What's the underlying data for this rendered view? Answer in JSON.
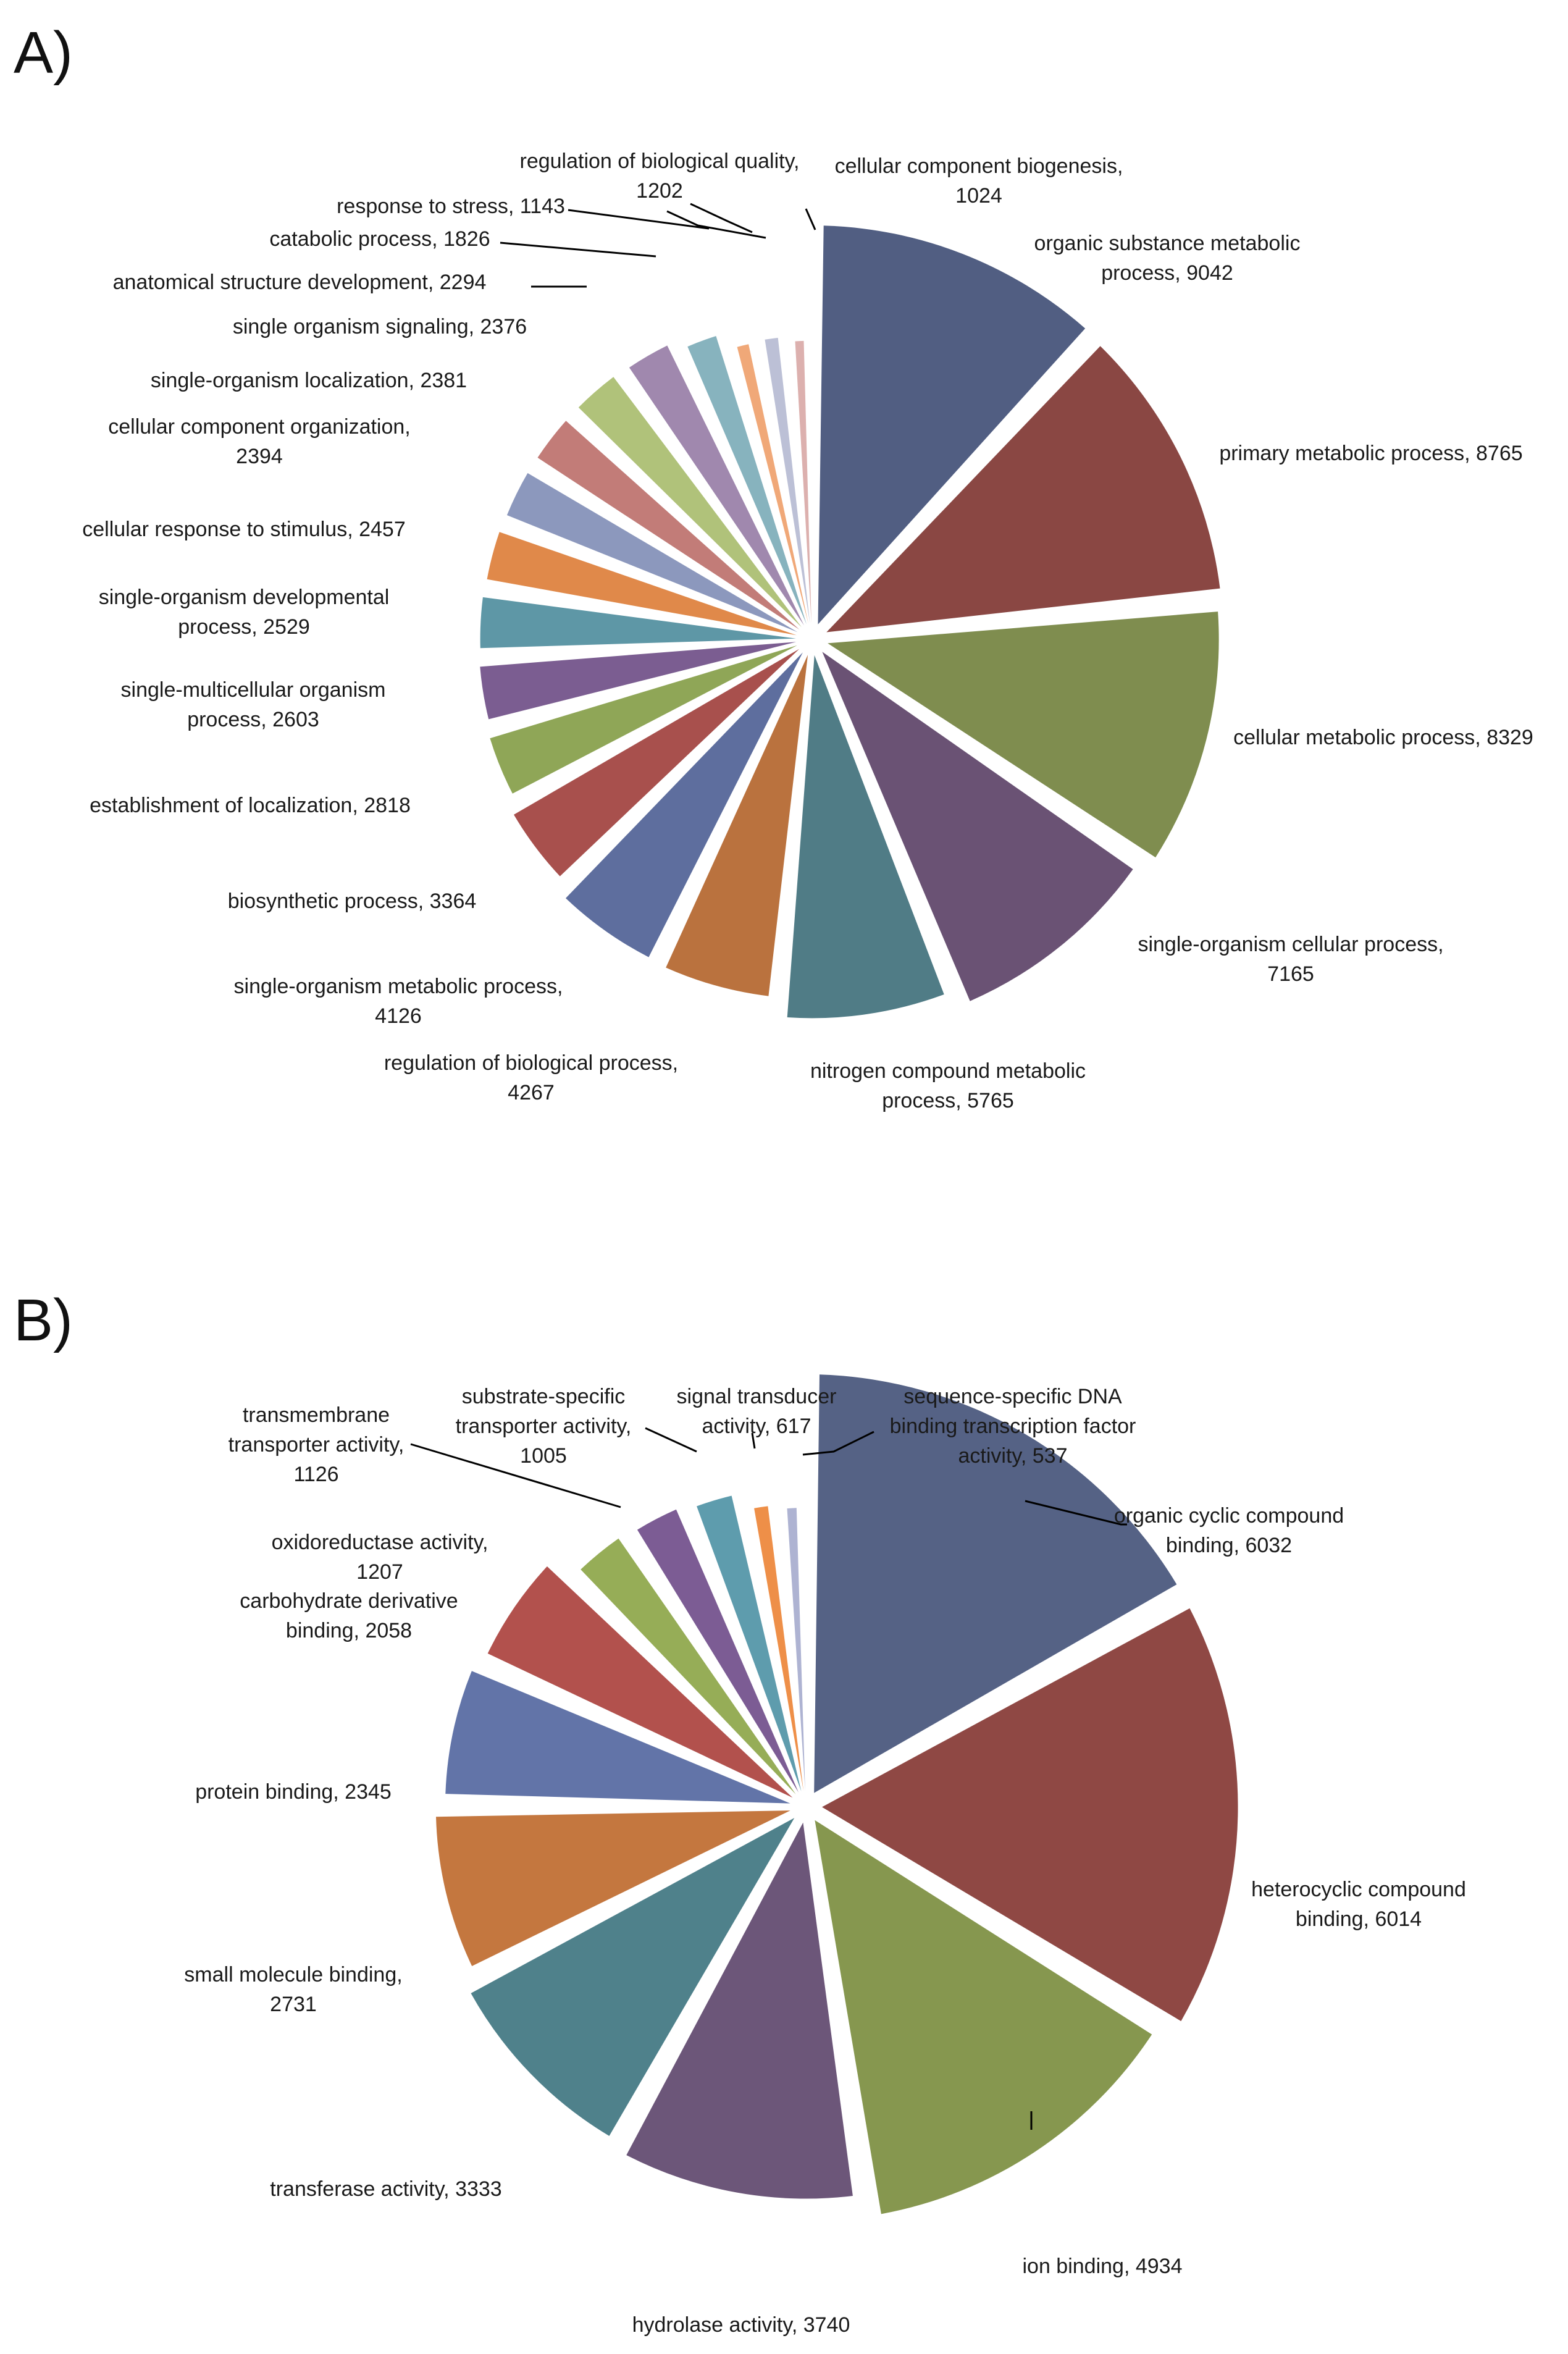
{
  "chart_data": [
    {
      "panel": "A)",
      "type": "pie",
      "title": "",
      "slices": [
        {
          "label": "organic substance metabolic process, 9042",
          "value": 9042,
          "color": "#515E82"
        },
        {
          "label": "primary metabolic process, 8765",
          "value": 8765,
          "color": "#8A4743"
        },
        {
          "label": "cellular metabolic process, 8329",
          "value": 8329,
          "color": "#7F8D4F"
        },
        {
          "label": "single-organism cellular process, 7165",
          "value": 7165,
          "color": "#6A5274"
        },
        {
          "label": "nitrogen compound metabolic process, 5765",
          "value": 5765,
          "color": "#507C86"
        },
        {
          "label": "regulation of biological process, 4267",
          "value": 4267,
          "color": "#BA723E"
        },
        {
          "label": "single-organism metabolic process, 4126",
          "value": 4126,
          "color": "#5E6E9E"
        },
        {
          "label": "biosynthetic process, 3364",
          "value": 3364,
          "color": "#A8504D"
        },
        {
          "label": "establishment of localization, 2818",
          "value": 2818,
          "color": "#8FA657"
        },
        {
          "label": "single-multicellular organism process, 2603",
          "value": 2603,
          "color": "#7B5D91"
        },
        {
          "label": "single-organism developmental process, 2529",
          "value": 2529,
          "color": "#5E97A6"
        },
        {
          "label": "cellular response to stimulus, 2457",
          "value": 2457,
          "color": "#E0894A"
        },
        {
          "label": "cellular component organization, 2394",
          "value": 2394,
          "color": "#8C98BD"
        },
        {
          "label": "single-organism localization, 2381",
          "value": 2381,
          "color": "#C27C78"
        },
        {
          "label": "single organism signaling, 2376",
          "value": 2376,
          "color": "#B0C27A"
        },
        {
          "label": "anatomical structure development, 2294",
          "value": 2294,
          "color": "#A088AE"
        },
        {
          "label": "catabolic process, 1826",
          "value": 1826,
          "color": "#87B3BE"
        },
        {
          "label": "response to stress, 1143",
          "value": 1143,
          "color": "#F0A878"
        },
        {
          "label": "regulation of biological quality, 1202",
          "value": 1202,
          "color": "#BCC0D6"
        },
        {
          "label": "cellular component biogenesis, 1024",
          "value": 1024,
          "color": "#DCB0AE"
        }
      ]
    },
    {
      "panel": "B)",
      "type": "pie",
      "title": "",
      "slices": [
        {
          "label": "organic cyclic compound binding, 6032",
          "value": 6032,
          "color": "#556285"
        },
        {
          "label": "heterocyclic compound binding, 6014",
          "value": 6014,
          "color": "#8F4844"
        },
        {
          "label": "ion binding, 4934",
          "value": 4934,
          "color": "#86974F"
        },
        {
          "label": "hydrolase activity, 3740",
          "value": 3740,
          "color": "#6C5679"
        },
        {
          "label": "transferase activity, 3333",
          "value": 3333,
          "color": "#4F818B"
        },
        {
          "label": "small molecule binding, 2731",
          "value": 2731,
          "color": "#C4773F"
        },
        {
          "label": "protein binding, 2345",
          "value": 2345,
          "color": "#6274A8"
        },
        {
          "label": "carbohydrate derivative binding, 2058",
          "value": 2058,
          "color": "#B2514D"
        },
        {
          "label": "oxidoreductase activity, 1207",
          "value": 1207,
          "color": "#96AD57"
        },
        {
          "label": "transmembrane transporter activity, 1126",
          "value": 1126,
          "color": "#7C5C94"
        },
        {
          "label": "substrate-specific transporter activity, 1005",
          "value": 1005,
          "color": "#5E9CAD"
        },
        {
          "label": "signal transducer activity, 617",
          "value": 617,
          "color": "#EE8F48"
        },
        {
          "label": "sequence-specific DNA binding transcription factor activity, 537",
          "value": 537,
          "color": "#AEB3D2"
        }
      ]
    }
  ],
  "panels": {
    "a": {
      "panel_label": "A)",
      "labels": [
        [
          "organic substance metabolic",
          "process, 9042"
        ],
        [
          "primary metabolic process, 8765"
        ],
        [
          "cellular metabolic process, 8329"
        ],
        [
          "single-organism cellular process,",
          "7165"
        ],
        [
          "nitrogen compound metabolic",
          "process, 5765"
        ],
        [
          "regulation of biological process,",
          "4267"
        ],
        [
          "single-organism metabolic process,",
          "4126"
        ],
        [
          "biosynthetic process, 3364"
        ],
        [
          "establishment of localization, 2818"
        ],
        [
          "single-multicellular organism",
          "process, 2603"
        ],
        [
          "single-organism developmental",
          "process, 2529"
        ],
        [
          "cellular response to stimulus, 2457"
        ],
        [
          "cellular component organization,",
          "2394"
        ],
        [
          "single-organism localization, 2381"
        ],
        [
          "single organism signaling, 2376"
        ],
        [
          "anatomical structure development, 2294"
        ],
        [
          "catabolic process, 1826"
        ],
        [
          "response to stress, 1143"
        ],
        [
          "regulation of biological quality,",
          "1202"
        ],
        [
          "cellular component biogenesis,",
          "1024"
        ]
      ]
    },
    "b": {
      "panel_label": "B)",
      "labels": [
        [
          "organic cyclic compound",
          "binding, 6032"
        ],
        [
          "heterocyclic compound",
          "binding, 6014"
        ],
        [
          "ion binding, 4934"
        ],
        [
          "hydrolase activity, 3740"
        ],
        [
          "transferase activity, 3333"
        ],
        [
          "small molecule binding,",
          "2731"
        ],
        [
          "protein binding, 2345"
        ],
        [
          "carbohydrate derivative",
          "binding, 2058"
        ],
        [
          "oxidoreductase activity,",
          "1207"
        ],
        [
          "transmembrane",
          "transporter activity,",
          "1126"
        ],
        [
          "substrate-specific",
          "transporter activity,",
          "1005"
        ],
        [
          "signal transducer",
          "activity, 617"
        ],
        [
          "sequence-specific DNA",
          "binding transcription factor",
          "activity, 537"
        ]
      ]
    }
  }
}
